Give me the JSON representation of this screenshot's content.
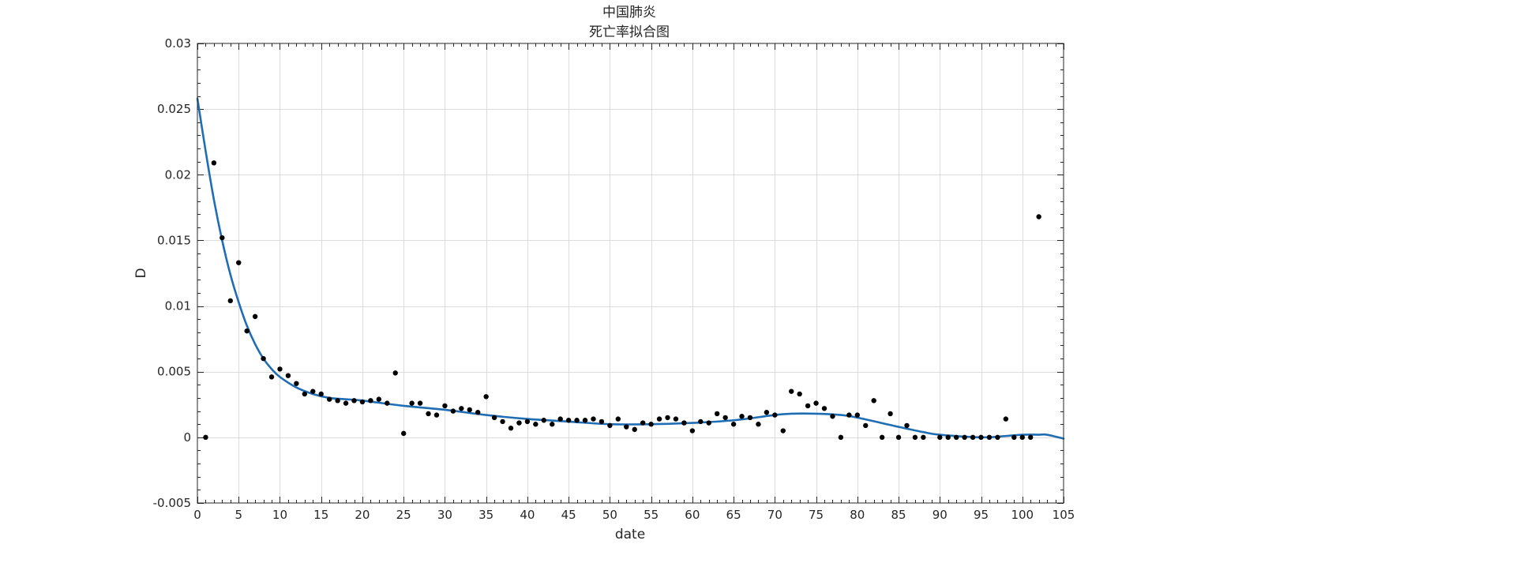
{
  "chart_data": {
    "type": "scatter",
    "title": [
      "中国肺炎",
      "死亡率拟合图"
    ],
    "xlabel": "date",
    "ylabel": "D",
    "xlim": [
      0,
      105
    ],
    "ylim": [
      -0.005,
      0.03
    ],
    "xticks": [
      0,
      5,
      10,
      15,
      20,
      25,
      30,
      35,
      40,
      45,
      50,
      55,
      60,
      65,
      70,
      75,
      80,
      85,
      90,
      95,
      100,
      105
    ],
    "yticks": [
      -0.005,
      0,
      0.005,
      0.01,
      0.015,
      0.02,
      0.025,
      0.03
    ],
    "ytick_labels": [
      "-0.005",
      "0",
      "0.005",
      "0.01",
      "0.015",
      "0.02",
      "0.025",
      "0.03"
    ],
    "grid": true,
    "minor_ticks": true,
    "colors": {
      "points": "#000000",
      "fit_line": "#1f6db3",
      "grid": "#dcdcdc",
      "axes": "#262626"
    },
    "series": [
      {
        "kind": "scatter",
        "x": [
          1,
          2,
          3,
          4,
          5,
          6,
          7,
          8,
          9,
          10,
          11,
          12,
          13,
          14,
          15,
          16,
          17,
          18,
          19,
          20,
          21,
          22,
          23,
          24,
          25,
          26,
          27,
          28,
          29,
          30,
          31,
          32,
          33,
          34,
          35,
          36,
          37,
          38,
          39,
          40,
          41,
          42,
          43,
          44,
          45,
          46,
          47,
          48,
          49,
          50,
          51,
          52,
          53,
          54,
          55,
          56,
          57,
          58,
          59,
          60,
          61,
          62,
          63,
          64,
          65,
          66,
          67,
          68,
          69,
          70,
          71,
          72,
          73,
          74,
          75,
          76,
          77,
          78,
          79,
          80,
          81,
          82,
          83,
          84,
          85,
          86,
          87,
          88,
          90,
          91,
          92,
          93,
          94,
          95,
          96,
          97,
          98,
          99,
          100,
          101,
          102
        ],
        "y": [
          0.0,
          0.0209,
          0.0152,
          0.0104,
          0.0133,
          0.0081,
          0.0092,
          0.006,
          0.0046,
          0.0052,
          0.0047,
          0.0041,
          0.0033,
          0.0035,
          0.0033,
          0.0029,
          0.0028,
          0.0026,
          0.0028,
          0.0027,
          0.0028,
          0.0029,
          0.0026,
          0.0049,
          0.0003,
          0.0026,
          0.0026,
          0.0018,
          0.0017,
          0.0024,
          0.002,
          0.0022,
          0.0021,
          0.0019,
          0.0031,
          0.0015,
          0.0012,
          0.0007,
          0.0011,
          0.0012,
          0.001,
          0.0013,
          0.001,
          0.0014,
          0.0013,
          0.0013,
          0.0013,
          0.0014,
          0.0012,
          0.0009,
          0.0014,
          0.0008,
          0.0006,
          0.0011,
          0.001,
          0.0014,
          0.0015,
          0.0014,
          0.0011,
          0.0005,
          0.0012,
          0.0011,
          0.0018,
          0.0015,
          0.001,
          0.0016,
          0.0015,
          0.001,
          0.0019,
          0.0017,
          0.0005,
          0.0035,
          0.0033,
          0.0024,
          0.0026,
          0.0022,
          0.0016,
          0.0,
          0.0017,
          0.0017,
          0.0009,
          0.0028,
          0.0,
          0.0018,
          0.0,
          0.0009,
          0.0,
          0.0,
          0.0,
          0.0,
          0.0,
          0.0,
          0.0,
          0.0,
          0.0,
          0.0,
          0.0014,
          0.0,
          0.0,
          0.0,
          0.0168
        ]
      },
      {
        "kind": "line",
        "x": [
          0,
          1,
          2,
          3,
          4,
          5,
          6,
          7,
          8,
          9,
          10,
          12,
          14,
          16,
          18,
          20,
          25,
          30,
          35,
          40,
          45,
          50,
          55,
          60,
          65,
          70,
          72,
          75,
          78,
          80,
          85,
          88,
          90,
          95,
          98,
          100,
          102,
          103,
          105
        ],
        "y": [
          0.0258,
          0.0218,
          0.0181,
          0.015,
          0.0124,
          0.0103,
          0.0085,
          0.0071,
          0.006,
          0.0052,
          0.0046,
          0.0038,
          0.0033,
          0.003,
          0.0029,
          0.0028,
          0.0024,
          0.0021,
          0.0017,
          0.0014,
          0.0012,
          0.001,
          0.001,
          0.0011,
          0.0013,
          0.0017,
          0.0018,
          0.0018,
          0.0017,
          0.0015,
          0.0008,
          0.0004,
          0.0002,
          0.0,
          0.0001,
          0.0002,
          0.0002,
          0.0002,
          -0.0001
        ]
      }
    ]
  }
}
